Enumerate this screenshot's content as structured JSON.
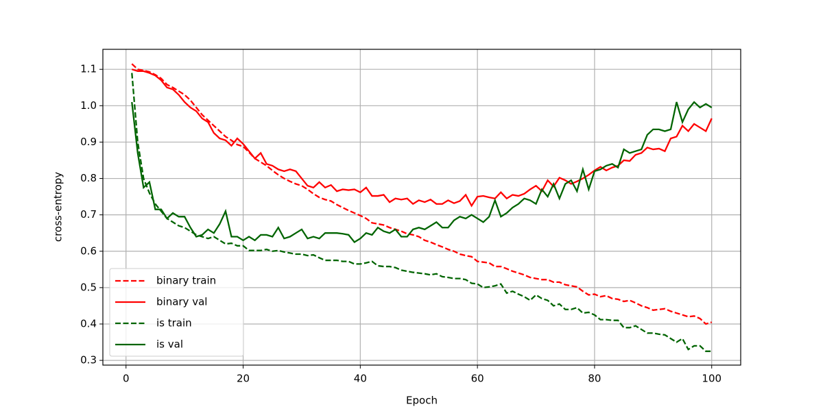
{
  "chart_data": {
    "type": "line",
    "xlabel": "Epoch",
    "ylabel": "cross-entropy",
    "x": [
      1,
      2,
      3,
      4,
      5,
      6,
      7,
      8,
      9,
      10,
      11,
      12,
      13,
      14,
      15,
      16,
      17,
      18,
      19,
      20,
      21,
      22,
      23,
      24,
      25,
      26,
      27,
      28,
      29,
      30,
      31,
      32,
      33,
      34,
      35,
      36,
      37,
      38,
      39,
      40,
      41,
      42,
      43,
      44,
      45,
      46,
      47,
      48,
      49,
      50,
      51,
      52,
      53,
      54,
      55,
      56,
      57,
      58,
      59,
      60,
      61,
      62,
      63,
      64,
      65,
      66,
      67,
      68,
      69,
      70,
      71,
      72,
      73,
      74,
      75,
      76,
      77,
      78,
      79,
      80,
      81,
      82,
      83,
      84,
      85,
      86,
      87,
      88,
      89,
      90,
      91,
      92,
      93,
      94,
      95,
      96,
      97,
      98,
      99,
      100
    ],
    "xlim": [
      -3.95,
      104.95
    ],
    "xticks": [
      0,
      20,
      40,
      60,
      80,
      100
    ],
    "ylim": [
      0.287,
      1.155
    ],
    "yticks": [
      0.3,
      0.4,
      0.5,
      0.6,
      0.7,
      0.8,
      0.9,
      {
        "value": 1.0,
        "label": "1.0"
      },
      1.1
    ],
    "grid": true,
    "legend": "lower left",
    "series": [
      {
        "name": "binary train",
        "color": "#ff0000",
        "dash": true,
        "values": [
          1.115,
          1.1,
          1.097,
          1.093,
          1.085,
          1.075,
          1.058,
          1.05,
          1.04,
          1.03,
          1.015,
          0.995,
          0.975,
          0.96,
          0.945,
          0.93,
          0.915,
          0.905,
          0.893,
          0.888,
          0.872,
          0.855,
          0.845,
          0.835,
          0.822,
          0.81,
          0.8,
          0.792,
          0.785,
          0.78,
          0.77,
          0.758,
          0.748,
          0.742,
          0.738,
          0.728,
          0.72,
          0.712,
          0.705,
          0.698,
          0.69,
          0.678,
          0.675,
          0.672,
          0.665,
          0.66,
          0.655,
          0.648,
          0.645,
          0.64,
          0.63,
          0.625,
          0.618,
          0.612,
          0.605,
          0.6,
          0.592,
          0.588,
          0.585,
          0.572,
          0.57,
          0.568,
          0.558,
          0.558,
          0.552,
          0.545,
          0.54,
          0.535,
          0.528,
          0.525,
          0.522,
          0.522,
          0.515,
          0.515,
          0.508,
          0.505,
          0.502,
          0.49,
          0.48,
          0.482,
          0.475,
          0.478,
          0.47,
          0.468,
          0.462,
          0.465,
          0.458,
          0.45,
          0.445,
          0.438,
          0.44,
          0.442,
          0.435,
          0.43,
          0.425,
          0.42,
          0.422,
          0.415,
          0.4,
          0.405
        ]
      },
      {
        "name": "binary val",
        "color": "#ff0000",
        "dash": false,
        "values": [
          1.1,
          1.095,
          1.095,
          1.09,
          1.083,
          1.07,
          1.05,
          1.045,
          1.03,
          1.01,
          0.995,
          0.985,
          0.965,
          0.955,
          0.925,
          0.91,
          0.905,
          0.89,
          0.91,
          0.895,
          0.875,
          0.855,
          0.87,
          0.84,
          0.835,
          0.825,
          0.82,
          0.825,
          0.82,
          0.8,
          0.78,
          0.775,
          0.79,
          0.775,
          0.782,
          0.765,
          0.77,
          0.768,
          0.77,
          0.762,
          0.775,
          0.752,
          0.752,
          0.755,
          0.735,
          0.745,
          0.742,
          0.745,
          0.73,
          0.74,
          0.735,
          0.742,
          0.73,
          0.73,
          0.74,
          0.732,
          0.738,
          0.755,
          0.725,
          0.75,
          0.752,
          0.748,
          0.745,
          0.762,
          0.745,
          0.755,
          0.752,
          0.758,
          0.77,
          0.78,
          0.765,
          0.795,
          0.778,
          0.802,
          0.795,
          0.785,
          0.792,
          0.8,
          0.81,
          0.822,
          0.832,
          0.822,
          0.83,
          0.835,
          0.85,
          0.848,
          0.865,
          0.87,
          0.885,
          0.88,
          0.882,
          0.875,
          0.91,
          0.915,
          0.945,
          0.93,
          0.95,
          0.94,
          0.93,
          0.965
        ]
      },
      {
        "name": "is train",
        "color": "#006400",
        "dash": true,
        "values": [
          1.09,
          0.9,
          0.8,
          0.76,
          0.73,
          0.71,
          0.69,
          0.68,
          0.67,
          0.665,
          0.655,
          0.645,
          0.64,
          0.635,
          0.64,
          0.63,
          0.62,
          0.622,
          0.615,
          0.615,
          0.602,
          0.602,
          0.602,
          0.605,
          0.6,
          0.602,
          0.598,
          0.595,
          0.592,
          0.592,
          0.588,
          0.59,
          0.582,
          0.575,
          0.575,
          0.575,
          0.572,
          0.572,
          0.565,
          0.565,
          0.568,
          0.572,
          0.56,
          0.558,
          0.558,
          0.555,
          0.548,
          0.545,
          0.542,
          0.54,
          0.538,
          0.535,
          0.538,
          0.53,
          0.528,
          0.525,
          0.525,
          0.522,
          0.512,
          0.51,
          0.5,
          0.502,
          0.505,
          0.51,
          0.485,
          0.49,
          0.482,
          0.475,
          0.465,
          0.48,
          0.47,
          0.465,
          0.45,
          0.455,
          0.44,
          0.44,
          0.445,
          0.43,
          0.432,
          0.425,
          0.412,
          0.412,
          0.41,
          0.41,
          0.39,
          0.39,
          0.395,
          0.385,
          0.375,
          0.375,
          0.372,
          0.37,
          0.36,
          0.35,
          0.36,
          0.33,
          0.34,
          0.34,
          0.325,
          0.325
        ]
      },
      {
        "name": "is val",
        "color": "#006400",
        "dash": false,
        "values": [
          1.01,
          0.87,
          0.775,
          0.79,
          0.715,
          0.715,
          0.69,
          0.705,
          0.695,
          0.695,
          0.665,
          0.64,
          0.645,
          0.66,
          0.65,
          0.675,
          0.71,
          0.64,
          0.64,
          0.63,
          0.64,
          0.63,
          0.645,
          0.645,
          0.64,
          0.665,
          0.635,
          0.64,
          0.65,
          0.66,
          0.635,
          0.64,
          0.635,
          0.65,
          0.65,
          0.65,
          0.648,
          0.645,
          0.625,
          0.635,
          0.65,
          0.645,
          0.665,
          0.655,
          0.65,
          0.66,
          0.64,
          0.64,
          0.66,
          0.665,
          0.66,
          0.67,
          0.68,
          0.665,
          0.665,
          0.685,
          0.695,
          0.69,
          0.7,
          0.69,
          0.68,
          0.695,
          0.74,
          0.695,
          0.705,
          0.72,
          0.73,
          0.745,
          0.74,
          0.73,
          0.77,
          0.75,
          0.785,
          0.745,
          0.785,
          0.795,
          0.765,
          0.825,
          0.77,
          0.82,
          0.825,
          0.835,
          0.84,
          0.83,
          0.88,
          0.87,
          0.875,
          0.88,
          0.92,
          0.935,
          0.935,
          0.93,
          0.935,
          1.01,
          0.955,
          0.99,
          1.01,
          0.995,
          1.005,
          0.995
        ]
      }
    ]
  }
}
